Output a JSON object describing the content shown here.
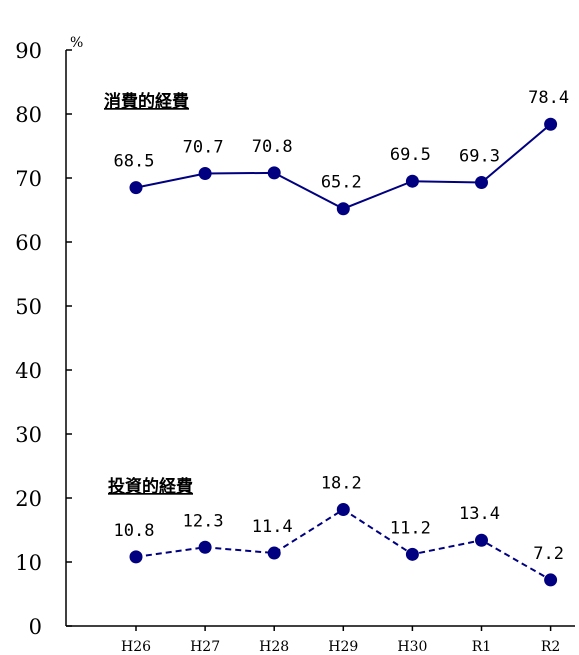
{
  "chart_data": {
    "type": "line",
    "unit": "%",
    "categories": [
      "H26",
      "H27",
      "H28",
      "H29",
      "H30",
      "R1",
      "R2"
    ],
    "y_ticks": [
      "0",
      "10",
      "20",
      "30",
      "40",
      "50",
      "60",
      "70",
      "80",
      "90"
    ],
    "ylim": [
      0,
      90
    ],
    "grid": false,
    "colors": {
      "series": "#000080",
      "axis": "#000000"
    },
    "series": [
      {
        "name": "消費的経費",
        "line_style": "solid",
        "values": [
          68.5,
          70.7,
          70.8,
          65.2,
          69.5,
          69.3,
          78.4
        ],
        "labels": [
          "68.5",
          "70.7",
          "70.8",
          "65.2",
          "69.5",
          "69.3",
          "78.4"
        ]
      },
      {
        "name": "投資的経費",
        "line_style": "dashed",
        "values": [
          10.8,
          12.3,
          11.4,
          18.2,
          11.2,
          13.4,
          7.2
        ],
        "labels": [
          "10.8",
          "12.3",
          "11.4",
          "18.2",
          "11.2",
          "13.4",
          "7.2"
        ]
      }
    ]
  }
}
